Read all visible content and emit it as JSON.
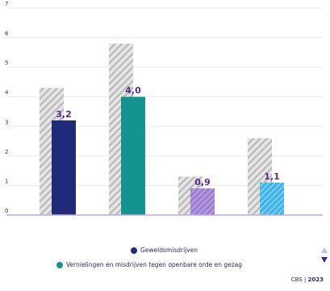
{
  "chart_data": {
    "type": "bar",
    "categories": [
      "",
      "",
      "",
      ""
    ],
    "ylim": [
      0,
      7
    ],
    "yticks": [
      "0",
      "1",
      "2",
      "3",
      "4",
      "5",
      "6",
      "7"
    ],
    "grid": true,
    "background_values": [
      4.3,
      5.8,
      1.3,
      2.6
    ],
    "series": [
      {
        "name": "Geweldsmisdrijven",
        "values": [
          3.2,
          null,
          null,
          null
        ],
        "value_labels": [
          "3,2",
          null,
          null,
          null
        ],
        "color": "#1f2a78",
        "hatched": false
      },
      {
        "name": "Vernielingen en misdrijven tegen openbare orde en gezag",
        "values": [
          null,
          4.0,
          null,
          null
        ],
        "value_labels": [
          null,
          "4,0",
          null,
          null
        ],
        "color": "#14938f",
        "hatched": false
      },
      {
        "name": "",
        "values": [
          null,
          null,
          0.9,
          null
        ],
        "value_labels": [
          null,
          null,
          "0,9",
          null
        ],
        "color": "#9b7ed0",
        "hatched": true
      },
      {
        "name": "",
        "values": [
          null,
          null,
          null,
          1.1
        ],
        "value_labels": [
          null,
          null,
          null,
          "1,1"
        ],
        "color": "#3eb4e6",
        "hatched": true
      }
    ],
    "legend_placement": "bottom"
  },
  "source": {
    "org": "CBS",
    "separator": " | ",
    "year": "2023"
  },
  "colors": {
    "axis_line": "#c3a6e6",
    "gridline": "#ece6f5",
    "background_bar_stripe": "#b8b8b8",
    "scroll_up": "#c8b8e8",
    "scroll_down": "#3b2a86"
  }
}
